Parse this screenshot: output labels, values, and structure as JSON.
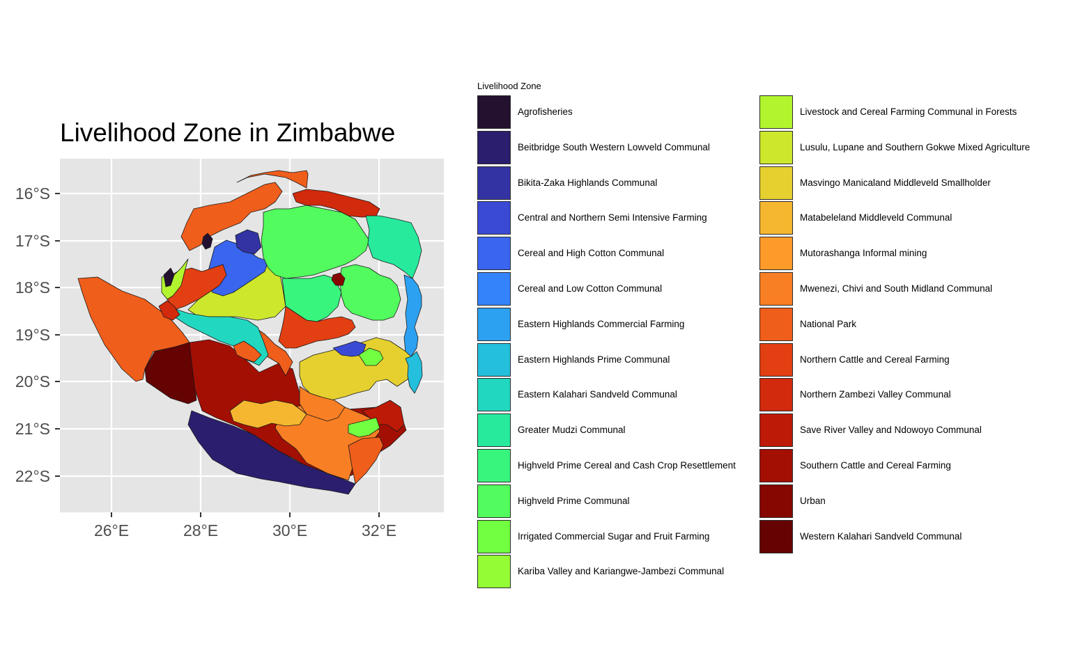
{
  "title": "Livelihood Zone in Zimbabwe",
  "axes": {
    "x_ticks": [
      "26°E",
      "28°E",
      "30°E",
      "32°E"
    ],
    "y_ticks": [
      "16°S",
      "17°S",
      "18°S",
      "19°S",
      "20°S",
      "21°S",
      "22°S"
    ],
    "panel_background": "#e5e5e5",
    "grid_color": "#ffffff"
  },
  "legend": {
    "title": "Livelihood Zone",
    "items": [
      {
        "label": "Agrofisheries",
        "color": "#23112f"
      },
      {
        "label": "Beitbridge South Western Lowveld Communal",
        "color": "#2c1e6e"
      },
      {
        "label": "Bikita-Zaka Highlands Communal",
        "color": "#3333a4"
      },
      {
        "label": "Central and Northern Semi Intensive Farming",
        "color": "#3b4ad4"
      },
      {
        "label": "Cereal and High Cotton Communal",
        "color": "#3965ef"
      },
      {
        "label": "Cereal and Low Cotton Communal",
        "color": "#3583fb"
      },
      {
        "label": "Eastern Highlands Commercial Farming",
        "color": "#2da1f1"
      },
      {
        "label": "Eastern Highlands Prime Communal",
        "color": "#24bfdc"
      },
      {
        "label": "Eastern Kalahari Sandveld Communal",
        "color": "#22d7c0"
      },
      {
        "label": "Greater Mudzi Communal",
        "color": "#27ea9d"
      },
      {
        "label": "Highveld Prime Cereal and Cash Crop Resettlement",
        "color": "#38f67d"
      },
      {
        "label": "Highveld Prime Communal",
        "color": "#52fc5e"
      },
      {
        "label": "Irrigated Commercial Sugar and Fruit Farming",
        "color": "#72fe41"
      },
      {
        "label": "Kariba Valley and Kariangwe-Jambezi Communal",
        "color": "#94fc34"
      },
      {
        "label": "Livestock and Cereal  Farming Communal in Forests",
        "color": "#b2f52e"
      },
      {
        "label": "Lusulu, Lupane and Southern Gokwe Mixed Agriculture",
        "color": "#cde72d"
      },
      {
        "label": "Masvingo Manicaland Middleveld Smallholder",
        "color": "#e5d030"
      },
      {
        "label": "Matabeleland Middleveld Communal",
        "color": "#f5b730"
      },
      {
        "label": "Mutorashanga Informal mining",
        "color": "#fc9b2a"
      },
      {
        "label": "Mwenezi, Chivi and South Midland Communal",
        "color": "#f97f24"
      },
      {
        "label": "National Park",
        "color": "#f05e1b"
      },
      {
        "label": "Northern Cattle and Cereal Farming",
        "color": "#e23f13"
      },
      {
        "label": "Northern Zambezi Valley Communal",
        "color": "#d12a0c"
      },
      {
        "label": "Save River Valley and Ndowoyo Communal",
        "color": "#bd1a07"
      },
      {
        "label": "Southern Cattle and Cereal Farming",
        "color": "#a40f03"
      },
      {
        "label": "Urban",
        "color": "#860702"
      },
      {
        "label": "Western Kalahari Sandveld Communal",
        "color": "#650202"
      }
    ]
  }
}
